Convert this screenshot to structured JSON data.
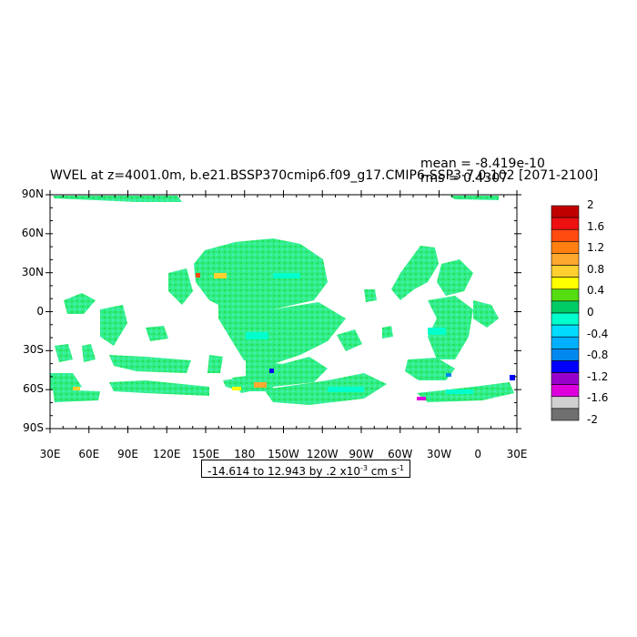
{
  "title": "WVEL at z=4001.0m, b.e21.BSSP370cmip6.f09_g17.CMIP6-SSP3-7.0.102 [2071-2100]",
  "stats": {
    "mean": "mean = -8.419e-10",
    "rms": "rms = 0.4307"
  },
  "lat_labels": [
    "90N",
    "60N",
    "30N",
    "0",
    "30S",
    "60S",
    "90S"
  ],
  "lon_labels": [
    "30E",
    "60E",
    "90E",
    "120E",
    "150E",
    "180",
    "150W",
    "120W",
    "90W",
    "60W",
    "30W",
    "0",
    "30E"
  ],
  "range": {
    "prefix": "-14.614 to 12.943 by .2 x10",
    "exp": "-3",
    "unit": " cm s",
    "unit_exp": "-1"
  },
  "colorbar": {
    "labels": [
      "2",
      "1.6",
      "1.2",
      "0.8",
      "0.4",
      "0",
      "-0.4",
      "-0.8",
      "-1.2",
      "-1.6",
      "-2"
    ],
    "colors": [
      "#c00000",
      "#ee1010",
      "#ff4a10",
      "#ff8010",
      "#ffa830",
      "#ffd030",
      "#ffff00",
      "#55dd11",
      "#00cc66",
      "#00ffcc",
      "#00ddff",
      "#00b0ff",
      "#0088ee",
      "#0000ff",
      "#9900cc",
      "#dd00dd",
      "#d0d0d0",
      "#707070"
    ]
  }
}
